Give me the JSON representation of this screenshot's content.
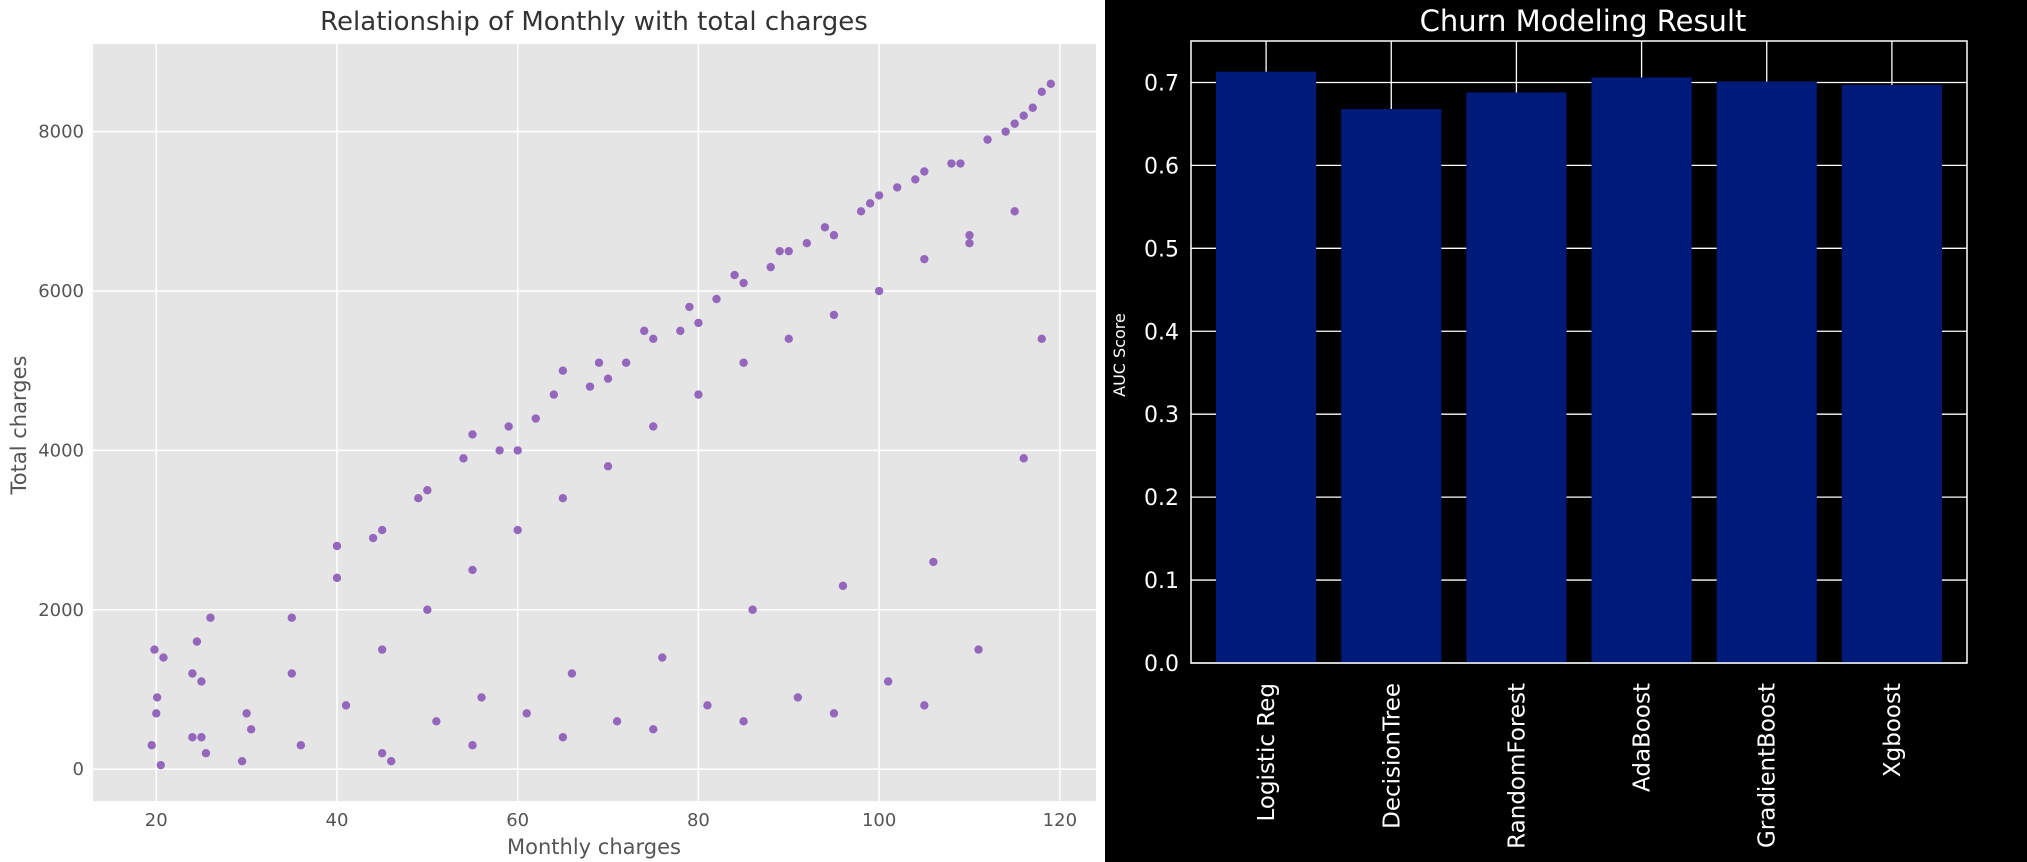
{
  "chart_data": [
    {
      "type": "scatter",
      "title": "Relationship of Monthly with total charges",
      "xlabel": "Monthly charges",
      "ylabel": "Total charges",
      "xlim": [
        13,
        124
      ],
      "ylim": [
        -400,
        9100
      ],
      "xticks": [
        20,
        40,
        60,
        80,
        100,
        120
      ],
      "yticks": [
        0,
        2000,
        4000,
        6000,
        8000
      ],
      "grid": true,
      "point_color": "#9467bd",
      "background": "#e5e5e5",
      "series": [
        {
          "x": [
            19.5,
            20.1,
            20.8,
            19.8,
            20.5,
            24.0,
            25.0,
            26.0,
            24.5,
            25.5,
            29.5,
            30.5,
            35,
            36,
            40,
            41,
            44,
            45,
            46,
            49,
            50,
            51,
            54,
            55,
            56,
            59,
            60,
            61,
            64,
            65,
            66,
            69,
            70,
            71,
            74,
            75,
            76,
            79,
            80,
            81,
            84,
            85,
            86,
            89,
            90,
            91,
            94,
            95,
            96,
            99,
            100,
            101,
            104,
            105,
            106,
            109,
            110,
            111,
            114,
            115,
            116,
            117,
            118,
            119,
            25,
            35,
            45,
            55,
            65,
            75,
            85,
            95,
            105,
            115,
            20,
            24,
            30,
            40,
            50,
            60,
            70,
            80,
            90,
            100,
            110,
            118,
            58,
            62,
            68,
            72,
            78,
            82,
            88,
            92,
            98,
            102,
            108,
            112,
            116,
            45,
            55,
            65,
            75,
            85,
            95,
            105
          ],
          "y": [
            300,
            900,
            1400,
            1500,
            50,
            400,
            1100,
            1900,
            1600,
            200,
            100,
            500,
            1200,
            300,
            2400,
            800,
            2900,
            1500,
            100,
            3400,
            2000,
            600,
            3900,
            2500,
            900,
            4300,
            3000,
            700,
            4700,
            3400,
            1200,
            5100,
            3800,
            600,
            5500,
            4300,
            1400,
            5800,
            4700,
            800,
            6200,
            5100,
            2000,
            6500,
            5400,
            900,
            6800,
            5700,
            2300,
            7100,
            6000,
            1100,
            7400,
            6400,
            2600,
            7600,
            6700,
            1500,
            8000,
            7000,
            3900,
            8300,
            5400,
            8600,
            400,
            1900,
            3000,
            4200,
            5000,
            5400,
            6100,
            6700,
            7500,
            8100,
            700,
            1200,
            700,
            2800,
            3500,
            4000,
            4900,
            5600,
            6500,
            7200,
            6600,
            8500,
            4000,
            4400,
            4800,
            5100,
            5500,
            5900,
            6300,
            6600,
            7000,
            7300,
            7600,
            7900,
            8200,
            200,
            300,
            400,
            500,
            600,
            700,
            800
          ]
        }
      ]
    },
    {
      "type": "bar",
      "title": "Churn Modeling Result",
      "ylabel": "AUC Score",
      "categories": [
        "Logistic Reg",
        "DecisionTree",
        "RandomForest",
        "AdaBoost",
        "GradientBoost",
        "Xgboost"
      ],
      "values": [
        0.713,
        0.668,
        0.688,
        0.706,
        0.701,
        0.697
      ],
      "ylim": [
        0,
        0.75
      ],
      "yticks": [
        0.0,
        0.1,
        0.2,
        0.3,
        0.4,
        0.5,
        0.6,
        0.7
      ],
      "grid": true,
      "bar_color": "#001a7a",
      "background": "#000000"
    }
  ]
}
